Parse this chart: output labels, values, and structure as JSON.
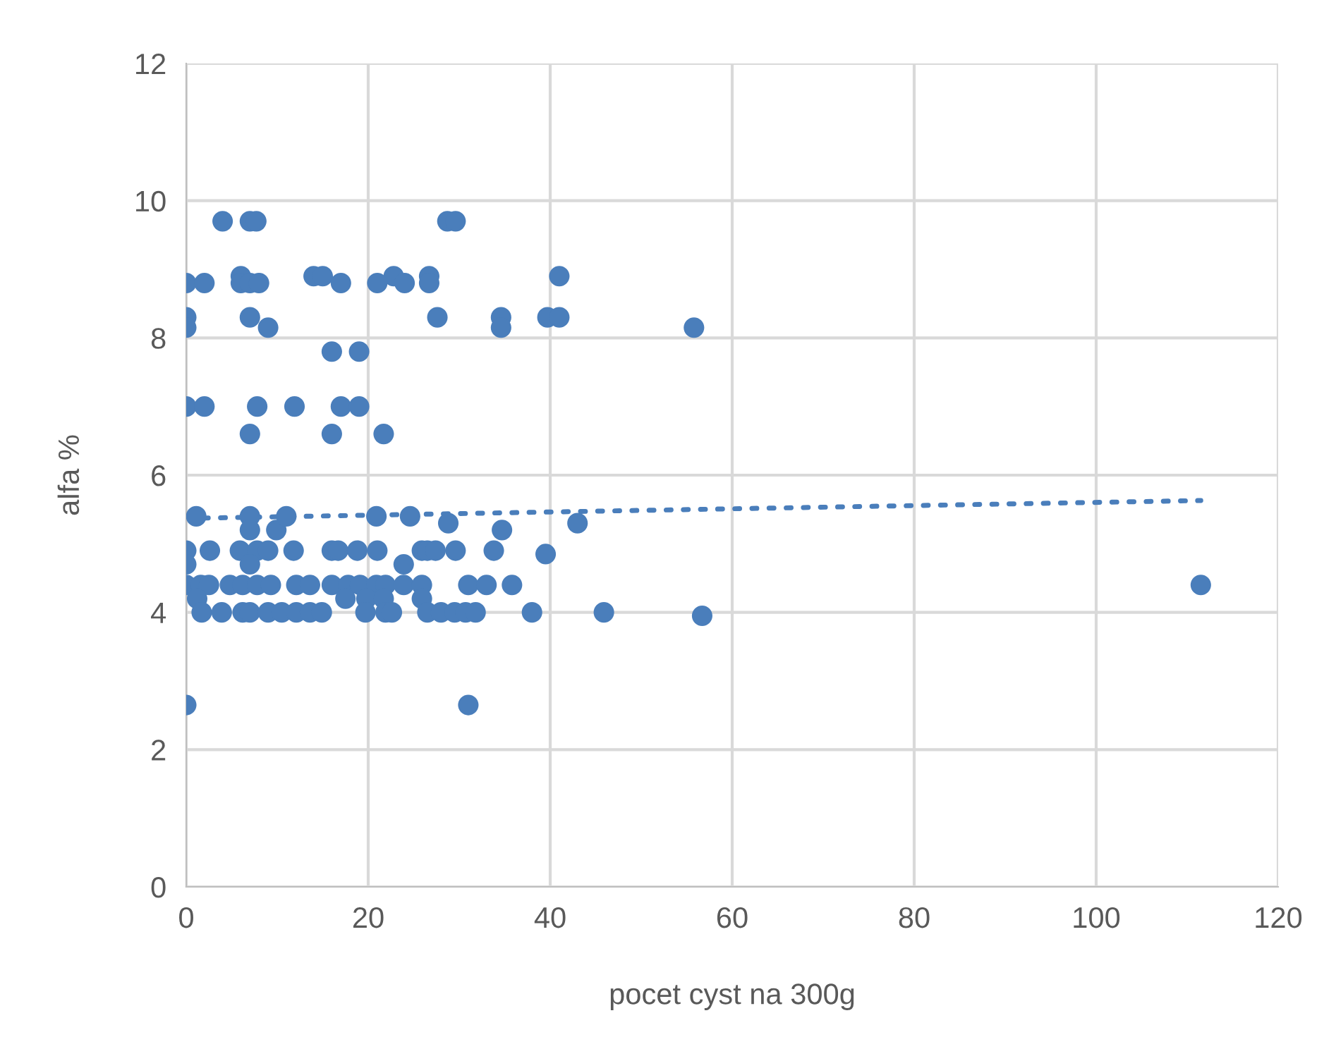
{
  "chart_data": {
    "type": "scatter",
    "xlabel": "pocet cyst na 300g",
    "ylabel": "alfa %",
    "xlim": [
      0,
      120
    ],
    "xticks": [
      0,
      20,
      40,
      60,
      80,
      100,
      120
    ],
    "ylim": [
      0,
      12
    ],
    "yticks": [
      0,
      2,
      4,
      6,
      8,
      10,
      12
    ],
    "grid": true,
    "legend": false,
    "series": [
      {
        "color": "#4a7ebb",
        "marker": "circle",
        "x": [
          4,
          7,
          7.7,
          28.7,
          29.6,
          6,
          14,
          15,
          22.8,
          26.7,
          41,
          0,
          2,
          6,
          7,
          8,
          17,
          21,
          24,
          26.7,
          0,
          7,
          27.6,
          34.6,
          39.7,
          41,
          0,
          9,
          34.6,
          55.8,
          16,
          19,
          0,
          2,
          7.8,
          11.9,
          17,
          19,
          7,
          16,
          21.7,
          1.1,
          7,
          7,
          9.9,
          11,
          20.9,
          24.6,
          28.8,
          34.7,
          43,
          0,
          2.6,
          5.9,
          7.8,
          9,
          11.8,
          16,
          16.7,
          18.8,
          21,
          25.9,
          26.5,
          27.4,
          29.6,
          33.8,
          39.5,
          0,
          7,
          23.9,
          0,
          1.6,
          2.5,
          4.8,
          6.2,
          7.8,
          9.3,
          12.1,
          13.6,
          16,
          17.8,
          19.1,
          20.9,
          21.9,
          23.9,
          25.9,
          31,
          33,
          35.8,
          1.2,
          17.5,
          19.8,
          21.7,
          25.9,
          1.7,
          3.9,
          6.2,
          7,
          9,
          10.5,
          12.1,
          13.6,
          14.9,
          19.7,
          21.9,
          22.6,
          26.5,
          28,
          29.5,
          30.7,
          31.8,
          38,
          45.9,
          56.7,
          111.5,
          0,
          31
        ],
        "values": [
          9.7,
          9.7,
          9.7,
          9.7,
          9.7,
          8.9,
          8.9,
          8.9,
          8.9,
          8.9,
          8.9,
          8.8,
          8.8,
          8.8,
          8.8,
          8.8,
          8.8,
          8.8,
          8.8,
          8.8,
          8.3,
          8.3,
          8.3,
          8.3,
          8.3,
          8.3,
          8.15,
          8.15,
          8.15,
          8.15,
          7.8,
          7.8,
          7,
          7,
          7,
          7,
          7,
          7,
          6.6,
          6.6,
          6.6,
          5.4,
          5.4,
          5.2,
          5.2,
          5.4,
          5.4,
          5.4,
          5.3,
          5.2,
          5.3,
          4.9,
          4.9,
          4.9,
          4.9,
          4.9,
          4.9,
          4.9,
          4.9,
          4.9,
          4.9,
          4.9,
          4.9,
          4.9,
          4.9,
          4.9,
          4.85,
          4.7,
          4.7,
          4.7,
          4.4,
          4.4,
          4.4,
          4.4,
          4.4,
          4.4,
          4.4,
          4.4,
          4.4,
          4.4,
          4.4,
          4.4,
          4.4,
          4.4,
          4.4,
          4.4,
          4.4,
          4.4,
          4.4,
          4.2,
          4.2,
          4.2,
          4.2,
          4.2,
          4,
          4,
          4,
          4,
          4,
          4,
          4,
          4,
          4,
          4,
          4,
          4,
          4,
          4,
          4,
          4,
          4,
          4,
          4,
          3.95,
          4.4,
          2.65,
          2.65
        ]
      },
      {
        "type": "line",
        "color": "#4a7ebb",
        "line_style": "dotted",
        "x": [
          0,
          111.5
        ],
        "values": [
          5.37,
          5.63
        ]
      }
    ]
  }
}
